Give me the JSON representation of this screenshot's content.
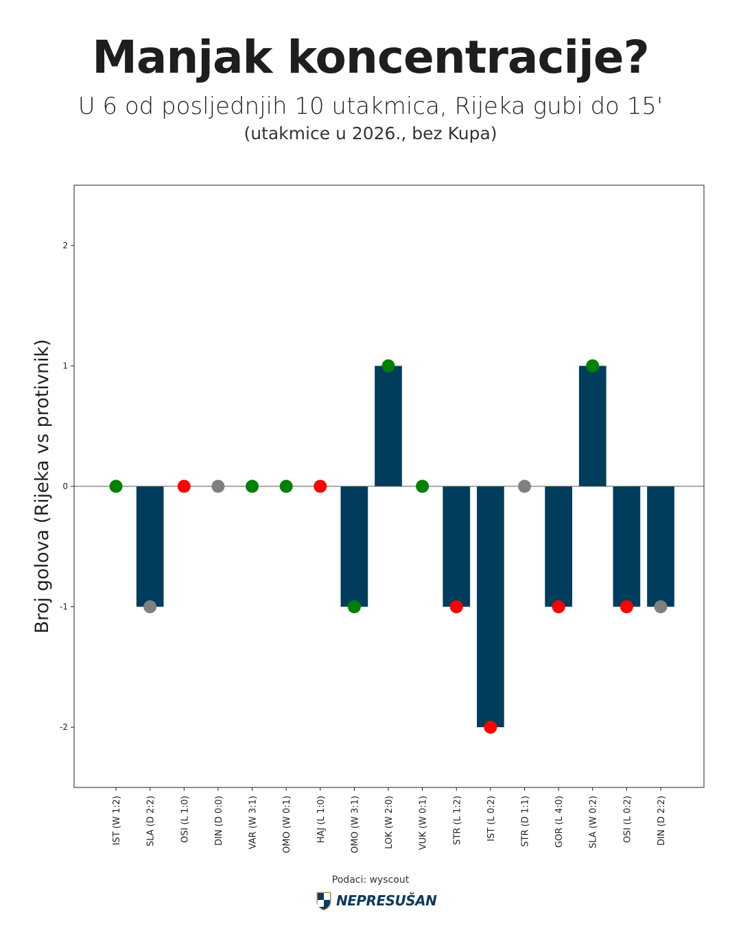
{
  "title": "Manjak koncentracije?",
  "subtitle": "U 6 od posljednjih 10 utakmica, Rijeka gubi do 15'",
  "note": "(utakmice u 2026., bez Kupa)",
  "source": "Podaci: wyscout",
  "logo_text": "NEPRESUŠAN",
  "colors": {
    "bar": "#003d5c",
    "win": "#008000",
    "draw": "#808080",
    "loss": "#ff0000"
  },
  "chart_data": {
    "type": "bar",
    "title": "Manjak koncentracije?",
    "xlabel": "",
    "ylabel": "Broj golova (Rijeka vs protivnik)",
    "ylim": [
      -2.5,
      2.5
    ],
    "yticks": [
      -2,
      -1,
      0,
      1,
      2
    ],
    "ytick_labels": [
      "-2",
      "-1",
      "0",
      "1",
      "2"
    ],
    "grid": false,
    "categories": [
      "IST (W 1:2)",
      "SLA (D 2:2)",
      "OSI (L 1:0)",
      "DIN (D 0:0)",
      "VAR (W 3:1)",
      "OMO (W 0:1)",
      "HAJ (L 1:0)",
      "OMO (W 3:1)",
      "LOK (W 2:0)",
      "VUK (W 0:1)",
      "STR (L 1:2)",
      "IST (L 0:2)",
      "STR (D 1:1)",
      "GOR (L 4:0)",
      "SLA (W 0:2)",
      "OSI (L 0:2)",
      "DIN (D 2:2)"
    ],
    "values": [
      0,
      -1,
      0,
      0,
      0,
      0,
      0,
      -1,
      1,
      0,
      -1,
      -2,
      0,
      -1,
      1,
      -1,
      -1
    ],
    "results": [
      "W",
      "D",
      "L",
      "D",
      "W",
      "W",
      "L",
      "W",
      "W",
      "W",
      "L",
      "L",
      "D",
      "L",
      "W",
      "L",
      "D"
    ]
  }
}
